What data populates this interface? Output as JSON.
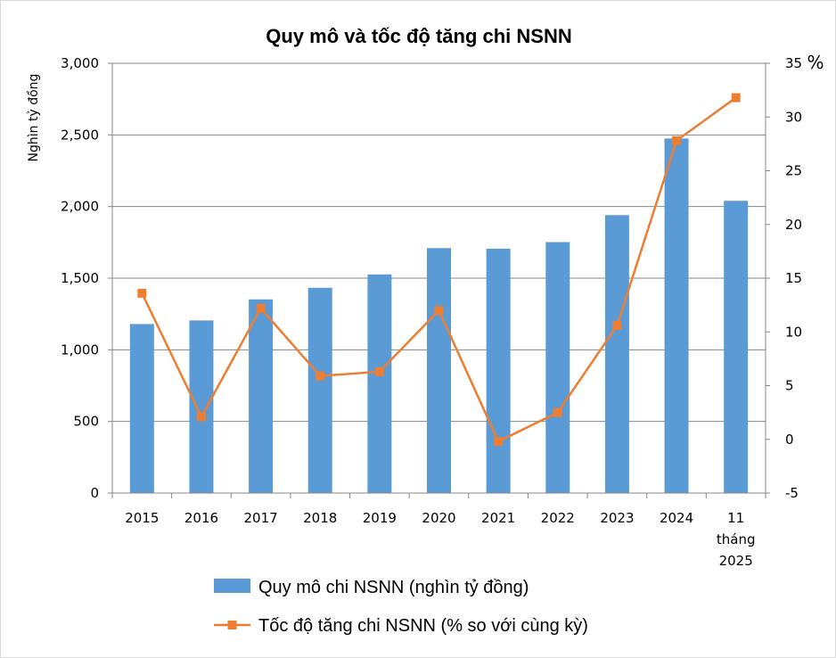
{
  "chart_data": {
    "type": "bar",
    "title": "Quy mô và tốc độ tăng chi NSNN",
    "ylabel": "Nghìn tỷ đồng",
    "y2label": "%",
    "categories": [
      [
        "2015"
      ],
      [
        "2016"
      ],
      [
        "2017"
      ],
      [
        "2018"
      ],
      [
        "2019"
      ],
      [
        "2020"
      ],
      [
        "2021"
      ],
      [
        "2022"
      ],
      [
        "2023"
      ],
      [
        "2024"
      ],
      [
        "11",
        "tháng",
        "2025"
      ]
    ],
    "ylim": [
      0,
      3000
    ],
    "y2lim": [
      -5,
      35
    ],
    "yticks": [
      "0",
      "500",
      "1,000",
      "1,500",
      "2,000",
      "2,500",
      "3,000"
    ],
    "y2ticks": [
      "-5",
      "0",
      "5",
      "10",
      "15",
      "20",
      "25",
      "30",
      "35"
    ],
    "grid": true,
    "legend_position": "bottom",
    "series": [
      {
        "name": "Quy mô chi NSNN (nghìn tỷ đồng)",
        "type": "bar",
        "axis": "left",
        "color": "#5b9bd5",
        "values": [
          1180,
          1205,
          1352,
          1433,
          1526,
          1710,
          1706,
          1752,
          1940,
          2475,
          2040
        ]
      },
      {
        "name": "Tốc độ tăng chi NSNN (% so với cùng kỳ)",
        "type": "line",
        "axis": "right",
        "color": "#ed7d31",
        "marker": "square",
        "values": [
          13.6,
          2.1,
          12.2,
          5.9,
          6.3,
          12.0,
          -0.2,
          2.5,
          10.6,
          27.8,
          31.8
        ]
      }
    ]
  }
}
